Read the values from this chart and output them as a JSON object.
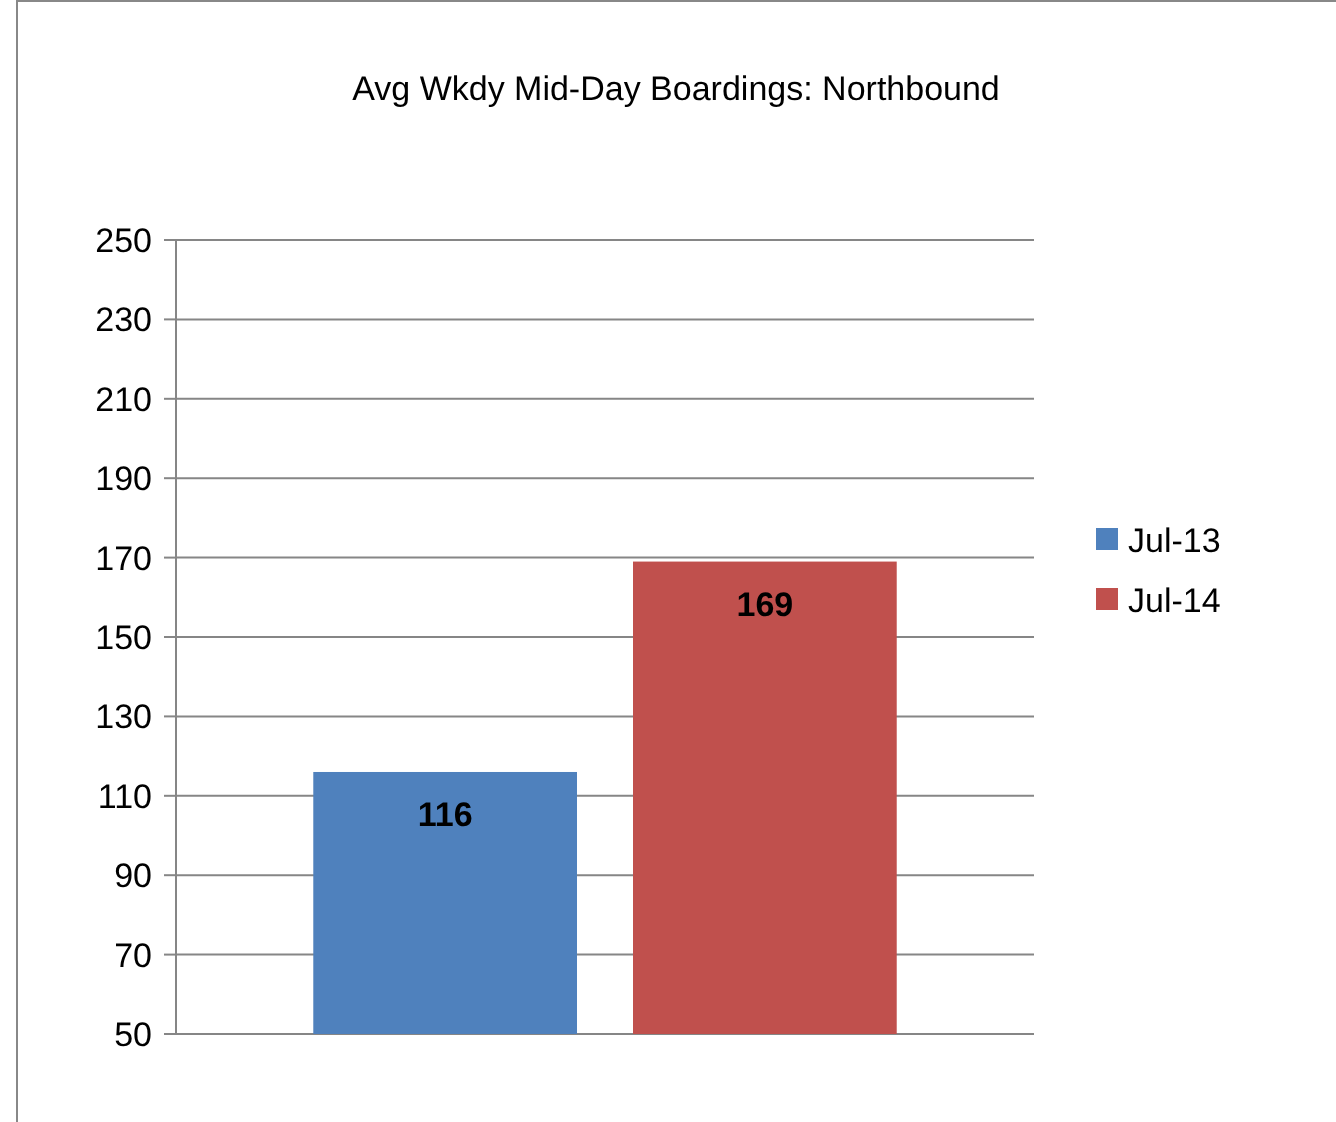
{
  "chart_data": {
    "type": "bar",
    "title": "Avg Wkdy Mid-Day Boardings: Northbound",
    "categories": [
      null
    ],
    "series": [
      {
        "name": "Jul-13",
        "color": "#4f81bd",
        "values": [
          116
        ]
      },
      {
        "name": "Jul-14",
        "color": "#c0504d",
        "values": [
          169
        ]
      }
    ],
    "ylim": [
      50,
      250
    ],
    "yticks": [
      50,
      70,
      90,
      110,
      130,
      150,
      170,
      190,
      210,
      230,
      250
    ],
    "grid": "y",
    "legend": "right",
    "data_labels": true
  }
}
